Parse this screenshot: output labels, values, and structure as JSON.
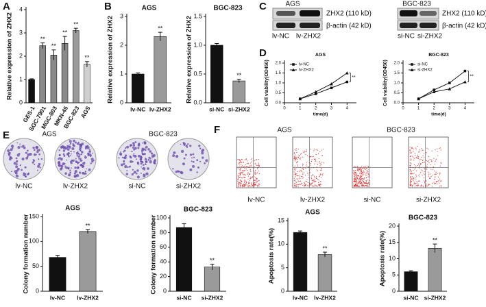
{
  "figure": {
    "panel_labels": [
      "A",
      "B",
      "C",
      "D",
      "E",
      "F"
    ],
    "blot": {
      "left_title": "AGS",
      "right_title": "BGC-823",
      "rows": [
        "ZHX2 (110 kD)",
        "β-actin (42 kD)"
      ],
      "left_lanes": [
        "lv-NC",
        "lv-ZHX2"
      ],
      "right_lanes": [
        "si-NC",
        "si-ZHX2"
      ]
    },
    "colony": {
      "titles": [
        "AGS",
        "BGC-823"
      ],
      "labels": [
        "lv-NC",
        "lv-ZHX2",
        "si-NC",
        "si-ZHX2"
      ]
    },
    "flow": {
      "titles": [
        "AGS",
        "BGC-823"
      ],
      "labels": [
        "lv-NC",
        "lv-ZHX2",
        "si-NC",
        "si-ZHX2"
      ]
    }
  },
  "chart_data": [
    {
      "type": "bar",
      "ylabel": "Relative expression of ZHX2",
      "categories": [
        "GES-1",
        "SGC-7901",
        "MGC-803",
        "MKN-45",
        "BGC-823",
        "AGS"
      ],
      "values": [
        1.0,
        2.45,
        2.05,
        2.55,
        3.1,
        1.65
      ],
      "errors": [
        0.03,
        0.12,
        0.22,
        0.3,
        0.1,
        0.12
      ],
      "colors": [
        "#111111",
        "#8a8a8a",
        "#8a8a8a",
        "#8a8a8a",
        "#9a9a9a",
        "#cfcfcf"
      ],
      "value_annotations": [
        null,
        "**",
        "**",
        "**",
        "**",
        "**"
      ],
      "ylim": [
        0,
        4
      ],
      "yticks": [
        0,
        1,
        2,
        3,
        4
      ]
    },
    {
      "type": "bar",
      "title": "AGS",
      "ylabel": "Relative expression of ZHX2",
      "categories": [
        "lv-NC",
        "lv-ZHX2"
      ],
      "values": [
        1.0,
        2.3
      ],
      "errors": [
        0.04,
        0.15
      ],
      "colors": [
        "#111111",
        "#9a9a9a"
      ],
      "value_annotations": [
        null,
        "**"
      ],
      "ylim": [
        0,
        3
      ],
      "yticks": [
        0,
        1,
        2,
        3
      ]
    },
    {
      "type": "bar",
      "title": "BGC-823",
      "ylabel": "Relative expression of ZHX2",
      "categories": [
        "si-NC",
        "si-ZHX2"
      ],
      "values": [
        1.0,
        0.38
      ],
      "errors": [
        0.03,
        0.03
      ],
      "colors": [
        "#111111",
        "#9a9a9a"
      ],
      "value_annotations": [
        null,
        "**"
      ],
      "ylim": [
        0,
        1.5
      ],
      "yticks": [
        {
          "value": 0,
          "label": "0.0"
        },
        0.5,
        {
          "value": 1,
          "label": "1.0"
        },
        1.5
      ]
    },
    {
      "type": "line",
      "title": "AGS",
      "xlabel": "time(d)",
      "ylabel": "Cell viability(OD450)",
      "x": [
        1,
        2,
        3,
        4
      ],
      "series": [
        {
          "name": "lv-NC",
          "color": "#111111",
          "marker": "square",
          "values": [
            0.2,
            0.45,
            0.75,
            1.05
          ]
        },
        {
          "name": "lv-ZHX2",
          "color": "#111111",
          "marker": "triangle",
          "values": [
            0.2,
            0.55,
            0.95,
            1.5
          ]
        }
      ],
      "annotation": "**",
      "legend": "upper-left",
      "xlim": [
        0,
        4.6
      ],
      "xticks": [
        0,
        1,
        2,
        3,
        4
      ],
      "ylim": [
        0,
        2
      ],
      "yticks": [
        {
          "value": 0,
          "label": "0.0"
        },
        0.5,
        {
          "value": 1,
          "label": "1.0"
        },
        1.5,
        {
          "value": 2,
          "label": "2.0"
        }
      ]
    },
    {
      "type": "line",
      "title": "BGC-823",
      "xlabel": "time(d)",
      "ylabel": "Cell viability(OD450)",
      "x": [
        1,
        2,
        3,
        4
      ],
      "series": [
        {
          "name": "si-NC",
          "color": "#111111",
          "marker": "square",
          "values": [
            0.2,
            0.65,
            1.0,
            1.6
          ]
        },
        {
          "name": "si-ZHX2",
          "color": "#111111",
          "marker": "triangle",
          "values": [
            0.2,
            0.55,
            0.7,
            1.05
          ]
        }
      ],
      "annotation": "**",
      "legend": "upper-left",
      "xlim": [
        0,
        4.6
      ],
      "xticks": [
        0,
        1,
        2,
        3,
        4
      ],
      "ylim": [
        0,
        2
      ],
      "yticks": [
        {
          "value": 0,
          "label": "0.0"
        },
        0.5,
        {
          "value": 1,
          "label": "1.0"
        },
        1.5,
        {
          "value": 2,
          "label": "2.0"
        }
      ]
    },
    {
      "type": "bar",
      "title": "AGS",
      "ylabel": "Colony formation number",
      "categories": [
        "lv-NC",
        "lv-ZHX2"
      ],
      "values": [
        68,
        120
      ],
      "errors": [
        4,
        4
      ],
      "colors": [
        "#111111",
        "#9a9a9a"
      ],
      "value_annotations": [
        null,
        "**"
      ],
      "ylim": [
        0,
        150
      ],
      "yticks": [
        0,
        50,
        100,
        150
      ]
    },
    {
      "type": "bar",
      "title": "BGC-823",
      "ylabel": "Colony formation number",
      "categories": [
        "si-NC",
        "si-ZHX2"
      ],
      "values": [
        87,
        33
      ],
      "errors": [
        5,
        4
      ],
      "colors": [
        "#111111",
        "#9a9a9a"
      ],
      "value_annotations": [
        null,
        "**"
      ],
      "ylim": [
        0,
        100
      ],
      "yticks": [
        0,
        20,
        40,
        60,
        80,
        100
      ]
    },
    {
      "type": "bar",
      "title": "AGS",
      "ylabel": "Apoptosis rate(%)",
      "categories": [
        "lv-NC",
        "lv-ZHX2"
      ],
      "values": [
        12.5,
        7.8
      ],
      "errors": [
        0.3,
        0.5
      ],
      "colors": [
        "#111111",
        "#9a9a9a"
      ],
      "value_annotations": [
        null,
        "**"
      ],
      "ylim": [
        0,
        15
      ],
      "yticks": [
        0,
        5,
        10,
        15
      ]
    },
    {
      "type": "bar",
      "title": "BGC-823",
      "ylabel": "Apoptosis rate(%)",
      "categories": [
        "si-NC",
        "si-ZHX2"
      ],
      "values": [
        6.0,
        13.2
      ],
      "errors": [
        0.3,
        1.3
      ],
      "colors": [
        "#111111",
        "#9a9a9a"
      ],
      "value_annotations": [
        null,
        "**"
      ],
      "ylim": [
        0,
        20
      ],
      "yticks": [
        0,
        5,
        10,
        15,
        20
      ]
    }
  ]
}
